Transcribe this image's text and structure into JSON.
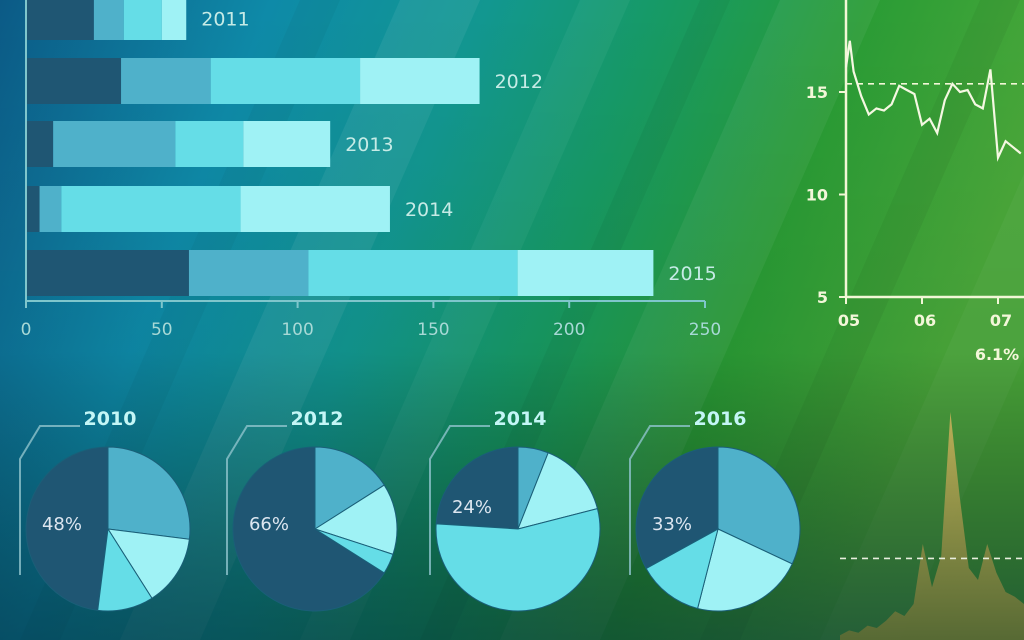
{
  "chart_data": [
    {
      "type": "bar",
      "stacked": true,
      "orientation": "horizontal",
      "categories": [
        "2011",
        "2012",
        "2013",
        "2014",
        "2015"
      ],
      "series": [
        {
          "values": [
            25,
            35,
            10,
            5,
            60
          ]
        },
        {
          "values": [
            11,
            33,
            45,
            8,
            44
          ]
        },
        {
          "values": [
            14,
            55,
            25,
            66,
            77
          ]
        },
        {
          "values": [
            9,
            44,
            32,
            55,
            50
          ]
        }
      ],
      "xlim": [
        0,
        250
      ],
      "xticks": [
        "0",
        "50",
        "100",
        "150",
        "200",
        "250"
      ],
      "colors": [
        "#1f5673",
        "#4fb1ca",
        "#65dde7",
        "#9ff2f5"
      ]
    },
    {
      "type": "pie",
      "groups": [
        {
          "title": "2010",
          "label": "48%",
          "values": [
            48,
            27,
            14,
            11
          ]
        },
        {
          "title": "2012",
          "label": "66%",
          "values": [
            66,
            16,
            14,
            4
          ]
        },
        {
          "title": "2014",
          "label": "24%",
          "values": [
            24,
            6,
            15,
            55
          ]
        },
        {
          "title": "2016",
          "label": "33%",
          "values": [
            33,
            32,
            22,
            13
          ]
        }
      ],
      "colors": [
        "#1f5673",
        "#4fb1ca",
        "#9ff2f5",
        "#65dde7"
      ]
    },
    {
      "type": "line",
      "x": [
        5.0,
        5.05,
        5.1,
        5.2,
        5.3,
        5.4,
        5.5,
        5.6,
        5.7,
        5.8,
        5.9,
        6.0,
        6.1,
        6.2,
        6.3,
        6.4,
        6.5,
        6.6,
        6.7,
        6.8,
        6.9,
        7.0,
        7.1,
        7.2,
        7.3
      ],
      "y": [
        16.2,
        17.5,
        16.0,
        14.8,
        13.9,
        14.2,
        14.1,
        14.4,
        15.3,
        15.1,
        14.9,
        13.4,
        13.7,
        13.0,
        14.6,
        15.4,
        15.0,
        15.1,
        14.4,
        14.2,
        16.1,
        11.8,
        12.6,
        12.3,
        12.0
      ],
      "xticks": [
        "05",
        "06",
        "07"
      ],
      "yticks": [
        "5",
        "10",
        "15"
      ],
      "ylim": [
        5,
        20
      ],
      "reference_line": 15.4,
      "annotation": "6.1%"
    },
    {
      "type": "area",
      "x": [
        0,
        0.05,
        0.1,
        0.15,
        0.2,
        0.25,
        0.3,
        0.35,
        0.4,
        0.45,
        0.5,
        0.55,
        0.6,
        0.65,
        0.7,
        0.75,
        0.8,
        0.85,
        0.9,
        0.95,
        1.0
      ],
      "y": [
        2,
        4,
        3,
        6,
        5,
        8,
        12,
        10,
        15,
        40,
        22,
        35,
        95,
        60,
        30,
        25,
        40,
        28,
        20,
        18,
        15
      ],
      "ylim": [
        0,
        100
      ],
      "reference_line": 34
    }
  ]
}
